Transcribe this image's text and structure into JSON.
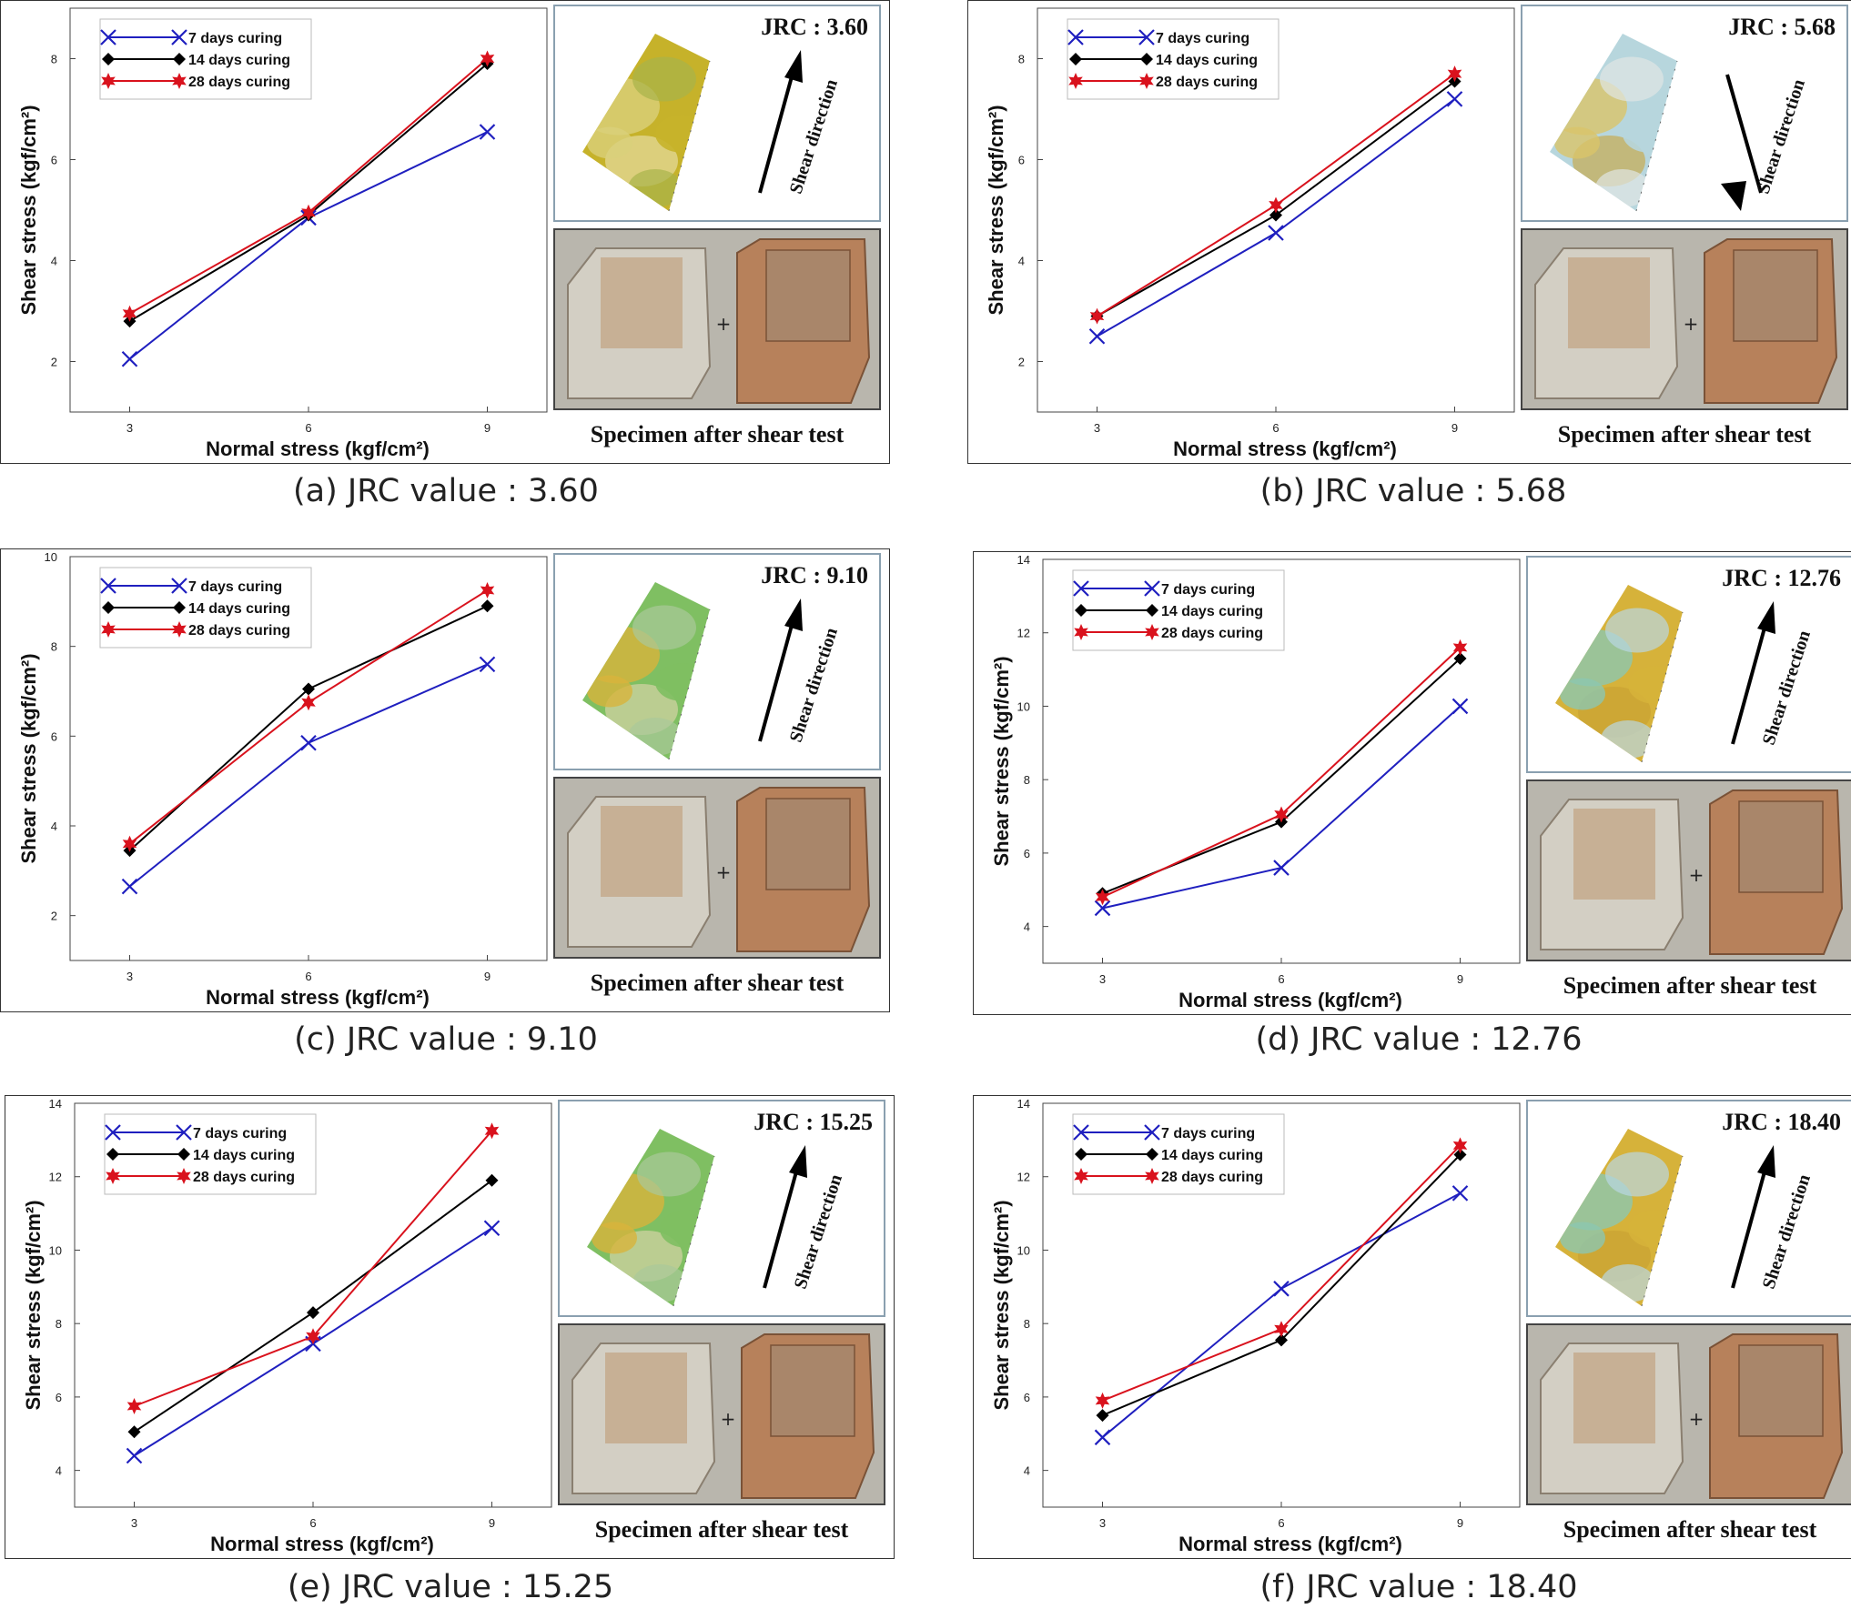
{
  "legend_labels": [
    "7 days curing",
    "14 days curing",
    "28 days curing"
  ],
  "colors": {
    "s7": "#1f1fbf",
    "s14": "#000000",
    "s28": "#d9121d"
  },
  "photo_caption": "Specimen after shear test",
  "shear_direction_label": "Shear direction",
  "chart_data": [
    {
      "type": "line",
      "jrc_label": "JRC : 3.60",
      "caption": "(a) JRC value : 3.60",
      "xlabel": "Normal stress (kgf/cm²)",
      "ylabel": "Shear stress (kgf/cm²)",
      "x": [
        3,
        6,
        9
      ],
      "xlim": [
        2,
        10
      ],
      "ylim": [
        1,
        9
      ],
      "yticks": [
        2,
        4,
        6,
        8
      ],
      "map_palette": "yellow",
      "series": [
        {
          "name": "7 days curing",
          "values": [
            2.05,
            4.85,
            6.55
          ]
        },
        {
          "name": "14 days curing",
          "values": [
            2.8,
            4.9,
            7.9
          ]
        },
        {
          "name": "28 days curing",
          "values": [
            2.95,
            4.95,
            8.0
          ]
        }
      ]
    },
    {
      "type": "line",
      "jrc_label": "JRC : 5.68",
      "caption": "(b) JRC value : 5.68",
      "xlabel": "Normal stress (kgf/cm²)",
      "ylabel": "Shear stress (kgf/cm²)",
      "x": [
        3,
        6,
        9
      ],
      "xlim": [
        2,
        10
      ],
      "ylim": [
        1,
        9
      ],
      "yticks": [
        2,
        4,
        6,
        8
      ],
      "map_palette": "blue",
      "series": [
        {
          "name": "7 days curing",
          "values": [
            2.5,
            4.55,
            7.2
          ]
        },
        {
          "name": "14 days curing",
          "values": [
            2.9,
            4.9,
            7.55
          ]
        },
        {
          "name": "28 days curing",
          "values": [
            2.9,
            5.1,
            7.7
          ]
        }
      ]
    },
    {
      "type": "line",
      "jrc_label": "JRC : 9.10",
      "caption": "(c) JRC value : 9.10",
      "xlabel": "Normal stress (kgf/cm²)",
      "ylabel": "Shear stress (kgf/cm²)",
      "x": [
        3,
        6,
        9
      ],
      "xlim": [
        2,
        10
      ],
      "ylim": [
        1,
        10
      ],
      "yticks": [
        2,
        4,
        6,
        8,
        10
      ],
      "map_palette": "green",
      "series": [
        {
          "name": "7 days curing",
          "values": [
            2.65,
            5.85,
            7.6
          ]
        },
        {
          "name": "14 days curing",
          "values": [
            3.45,
            7.05,
            8.9
          ]
        },
        {
          "name": "28 days curing",
          "values": [
            3.6,
            6.75,
            9.25
          ]
        }
      ]
    },
    {
      "type": "line",
      "jrc_label": "JRC : 12.76",
      "caption": "(d) JRC value : 12.76",
      "xlabel": "Normal stress (kgf/cm²)",
      "ylabel": "Shear stress (kgf/cm²)",
      "x": [
        3,
        6,
        9
      ],
      "xlim": [
        2,
        10
      ],
      "ylim": [
        3,
        14
      ],
      "yticks": [
        4,
        6,
        8,
        10,
        12,
        14
      ],
      "map_palette": "mixed",
      "series": [
        {
          "name": "7 days curing",
          "values": [
            4.5,
            5.6,
            10.0
          ]
        },
        {
          "name": "14 days curing",
          "values": [
            4.9,
            6.85,
            11.3
          ]
        },
        {
          "name": "28 days curing",
          "values": [
            4.8,
            7.05,
            11.6
          ]
        }
      ]
    },
    {
      "type": "line",
      "jrc_label": "JRC : 15.25",
      "caption": "(e) JRC value : 15.25",
      "xlabel": "Normal stress (kgf/cm²)",
      "ylabel": "Shear stress (kgf/cm²)",
      "x": [
        3,
        6,
        9
      ],
      "xlim": [
        2,
        10
      ],
      "ylim": [
        3,
        14
      ],
      "yticks": [
        4,
        6,
        8,
        10,
        12,
        14
      ],
      "map_palette": "green",
      "series": [
        {
          "name": "7 days curing",
          "values": [
            4.4,
            7.45,
            10.6
          ]
        },
        {
          "name": "14 days curing",
          "values": [
            5.05,
            8.3,
            11.9
          ]
        },
        {
          "name": "28 days curing",
          "values": [
            5.75,
            7.65,
            13.25
          ]
        }
      ]
    },
    {
      "type": "line",
      "jrc_label": "JRC : 18.40",
      "caption": "(f) JRC value : 18.40",
      "xlabel": "Normal stress (kgf/cm²)",
      "ylabel": "Shear stress (kgf/cm²)",
      "x": [
        3,
        6,
        9
      ],
      "xlim": [
        2,
        10
      ],
      "ylim": [
        3,
        14
      ],
      "yticks": [
        4,
        6,
        8,
        10,
        12,
        14
      ],
      "map_palette": "mixed",
      "series": [
        {
          "name": "7 days curing",
          "values": [
            4.9,
            8.95,
            11.55
          ]
        },
        {
          "name": "14 days curing",
          "values": [
            5.5,
            7.55,
            12.6
          ]
        },
        {
          "name": "28 days curing",
          "values": [
            5.9,
            7.85,
            12.85
          ]
        }
      ]
    }
  ]
}
